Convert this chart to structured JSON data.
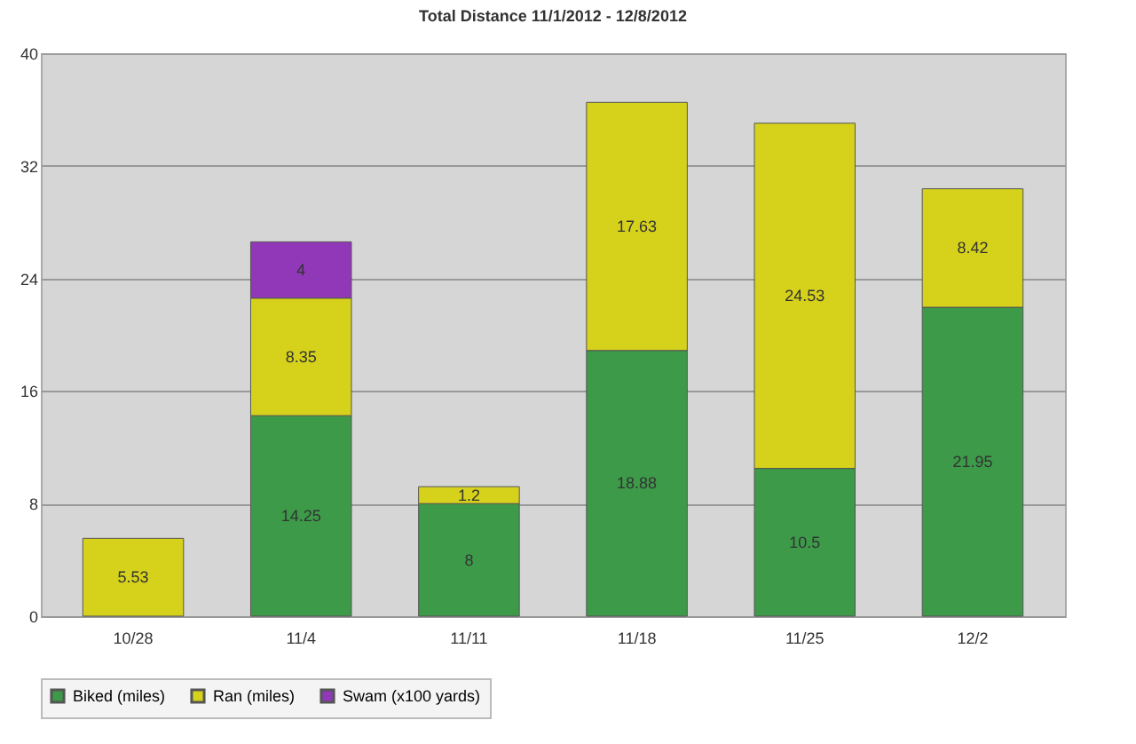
{
  "chart_data": {
    "type": "bar",
    "title": "Total Distance  11/1/2012 - 12/8/2012",
    "categories": [
      "10/28",
      "11/4",
      "11/11",
      "11/18",
      "11/25",
      "12/2"
    ],
    "stacked": true,
    "series": [
      {
        "name": "Biked (miles)",
        "color": "#3c9a48",
        "values": [
          null,
          14.25,
          8,
          18.88,
          10.5,
          21.95
        ]
      },
      {
        "name": "Ran (miles)",
        "color": "#d6d21c",
        "values": [
          5.53,
          8.35,
          1.2,
          17.63,
          24.53,
          8.42
        ]
      },
      {
        "name": "Swam (x100 yards)",
        "color": "#9038b8",
        "values": [
          null,
          4,
          null,
          null,
          null,
          null
        ]
      }
    ],
    "ylim": [
      0,
      40
    ],
    "yticks": [
      0,
      8,
      16,
      24,
      32,
      40
    ],
    "grid": "y",
    "legend": "bottom",
    "data_labels": true
  }
}
